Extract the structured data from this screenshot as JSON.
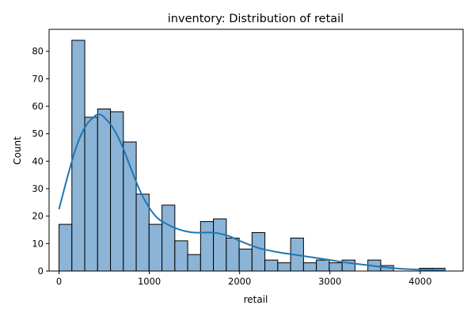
{
  "chart_data": {
    "type": "bar",
    "title": "inventory: Distribution of retail",
    "xlabel": "retail",
    "ylabel": "Count",
    "xlim": [
      -110,
      4475
    ],
    "ylim": [
      0,
      88
    ],
    "x_ticks": [
      0,
      1000,
      2000,
      3000,
      4000
    ],
    "y_ticks": [
      0,
      10,
      20,
      30,
      40,
      50,
      60,
      70,
      80
    ],
    "bin_width": 142.5,
    "bins": [
      {
        "x0": 0,
        "x1": 142.5,
        "count": 17
      },
      {
        "x0": 142.5,
        "x1": 285,
        "count": 84
      },
      {
        "x0": 285,
        "x1": 427.5,
        "count": 56
      },
      {
        "x0": 427.5,
        "x1": 570,
        "count": 59
      },
      {
        "x0": 570,
        "x1": 712.5,
        "count": 58
      },
      {
        "x0": 712.5,
        "x1": 855,
        "count": 47
      },
      {
        "x0": 855,
        "x1": 997.5,
        "count": 28
      },
      {
        "x0": 997.5,
        "x1": 1140,
        "count": 17
      },
      {
        "x0": 1140,
        "x1": 1282.5,
        "count": 24
      },
      {
        "x0": 1282.5,
        "x1": 1425,
        "count": 11
      },
      {
        "x0": 1425,
        "x1": 1567.5,
        "count": 6
      },
      {
        "x0": 1567.5,
        "x1": 1710,
        "count": 18
      },
      {
        "x0": 1710,
        "x1": 1852.5,
        "count": 19
      },
      {
        "x0": 1852.5,
        "x1": 1995,
        "count": 12
      },
      {
        "x0": 1995,
        "x1": 2137.5,
        "count": 8
      },
      {
        "x0": 2137.5,
        "x1": 2280,
        "count": 14
      },
      {
        "x0": 2280,
        "x1": 2422.5,
        "count": 4
      },
      {
        "x0": 2422.5,
        "x1": 2565,
        "count": 3
      },
      {
        "x0": 2565,
        "x1": 2707.5,
        "count": 12
      },
      {
        "x0": 2707.5,
        "x1": 2850,
        "count": 3
      },
      {
        "x0": 2850,
        "x1": 2992.5,
        "count": 4
      },
      {
        "x0": 2992.5,
        "x1": 3135,
        "count": 3
      },
      {
        "x0": 3135,
        "x1": 3277.5,
        "count": 4
      },
      {
        "x0": 3277.5,
        "x1": 3420,
        "count": 0
      },
      {
        "x0": 3420,
        "x1": 3562.5,
        "count": 4
      },
      {
        "x0": 3562.5,
        "x1": 3705,
        "count": 2
      },
      {
        "x0": 3705,
        "x1": 3847.5,
        "count": 0
      },
      {
        "x0": 3847.5,
        "x1": 3990,
        "count": 0
      },
      {
        "x0": 3990,
        "x1": 4132.5,
        "count": 1
      },
      {
        "x0": 4132.5,
        "x1": 4275,
        "count": 1
      }
    ],
    "kde": {
      "x": [
        0,
        100,
        200,
        300,
        400,
        450,
        500,
        600,
        700,
        800,
        900,
        1000,
        1100,
        1200,
        1300,
        1400,
        1500,
        1600,
        1700,
        1800,
        1900,
        2000,
        2200,
        2400,
        2600,
        2800,
        3000,
        3200,
        3400,
        3600,
        3800,
        4000,
        4275
      ],
      "y": [
        22.5,
        35,
        46,
        53,
        56.5,
        57,
        56,
        52,
        45.5,
        37,
        29,
        23,
        19,
        17,
        15.5,
        14.5,
        14,
        14,
        14,
        13.5,
        12.5,
        11,
        8.5,
        7,
        6,
        5,
        4,
        3,
        2.2,
        1.4,
        0.8,
        0.5,
        0.3
      ]
    },
    "colors": {
      "bar_fill": "#8bb4d6",
      "bar_edge": "#000000",
      "kde_line": "#1f77b4"
    },
    "grid": false,
    "legend": "none"
  }
}
